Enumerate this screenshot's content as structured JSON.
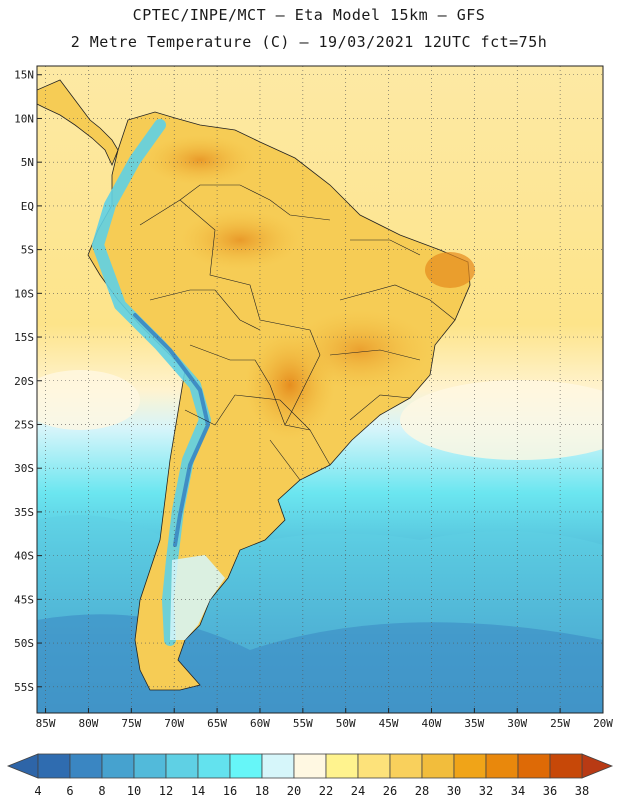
{
  "header": {
    "line1": "CPTEC/INPE/MCT –  Eta Model 15km – GFS",
    "line2": "2 Metre Temperature (C) – 19/03/2021 12UTC fct=75h"
  },
  "map": {
    "lon_min": -86,
    "lon_max": -20,
    "lat_min": -58,
    "lat_max": 16,
    "lat_ticks": [
      {
        "v": 15,
        "label": "15N"
      },
      {
        "v": 10,
        "label": "10N"
      },
      {
        "v": 5,
        "label": "5N"
      },
      {
        "v": 0,
        "label": "EQ"
      },
      {
        "v": -5,
        "label": "5S"
      },
      {
        "v": -10,
        "label": "10S"
      },
      {
        "v": -15,
        "label": "15S"
      },
      {
        "v": -20,
        "label": "20S"
      },
      {
        "v": -25,
        "label": "25S"
      },
      {
        "v": -30,
        "label": "30S"
      },
      {
        "v": -35,
        "label": "35S"
      },
      {
        "v": -40,
        "label": "40S"
      },
      {
        "v": -45,
        "label": "45S"
      },
      {
        "v": -50,
        "label": "50S"
      },
      {
        "v": -55,
        "label": "55S"
      }
    ],
    "lon_ticks": [
      {
        "v": -85,
        "label": "85W"
      },
      {
        "v": -80,
        "label": "80W"
      },
      {
        "v": -75,
        "label": "75W"
      },
      {
        "v": -70,
        "label": "70W"
      },
      {
        "v": -65,
        "label": "65W"
      },
      {
        "v": -60,
        "label": "60W"
      },
      {
        "v": -55,
        "label": "55W"
      },
      {
        "v": -50,
        "label": "50W"
      },
      {
        "v": -45,
        "label": "45W"
      },
      {
        "v": -40,
        "label": "40W"
      },
      {
        "v": -35,
        "label": "35W"
      },
      {
        "v": -30,
        "label": "30W"
      },
      {
        "v": -25,
        "label": "25W"
      },
      {
        "v": -20,
        "label": "20W"
      }
    ]
  },
  "colorbar": {
    "under_color": "#2e65a8",
    "over_color": "#b83a14",
    "labels": [
      "4",
      "6",
      "8",
      "10",
      "12",
      "14",
      "16",
      "18",
      "20",
      "22",
      "24",
      "26",
      "28",
      "30",
      "32",
      "34",
      "36",
      "38"
    ],
    "colors": [
      "#2f6cb0",
      "#3a86c2",
      "#46a2cf",
      "#52bada",
      "#5fd0e4",
      "#63e2ee",
      "#66f6f8",
      "#d6f6fa",
      "#fff8e2",
      "#fff38e",
      "#fde27a",
      "#f9d05c",
      "#f2bd3c",
      "#f0a418",
      "#e9880c",
      "#de6a06",
      "#c74808"
    ]
  }
}
